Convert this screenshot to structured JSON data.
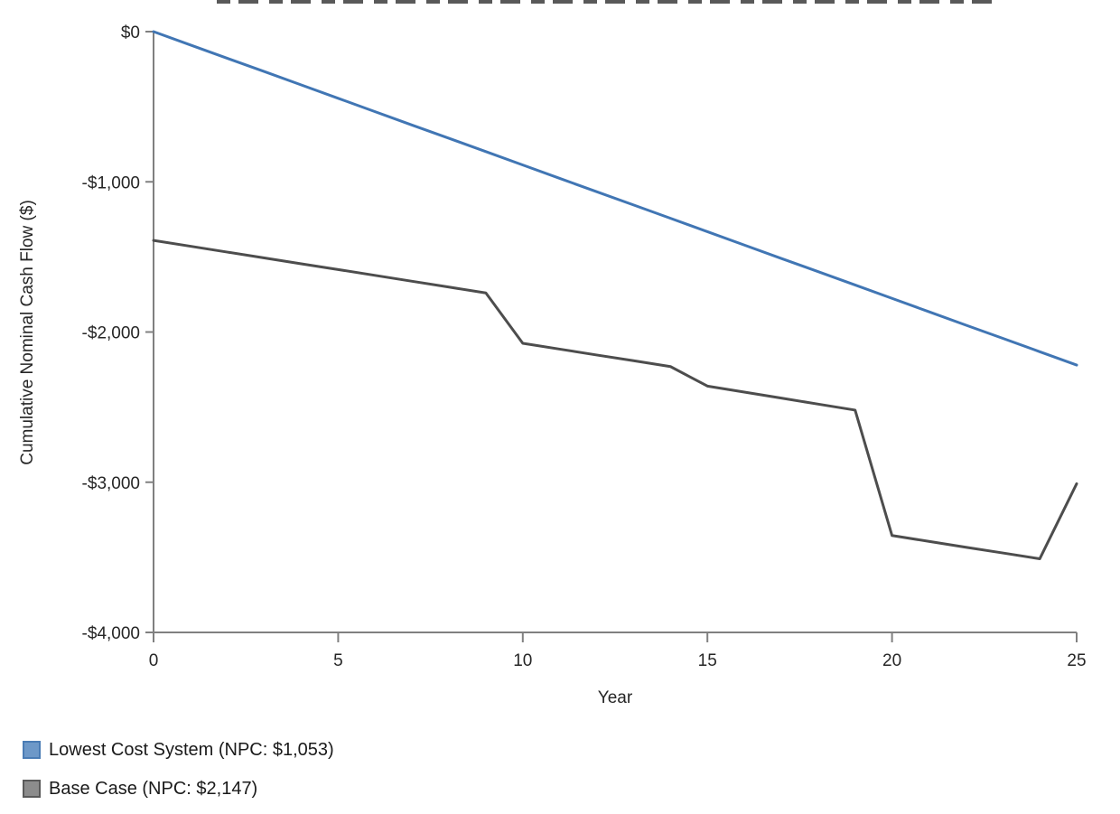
{
  "chart_data": {
    "type": "line",
    "xlabel": "Year",
    "ylabel": "Cumulative Nominal Cash Flow ($)",
    "xlim": [
      0,
      25
    ],
    "ylim": [
      -4000,
      0
    ],
    "grid": false,
    "legend_position": "bottom-left",
    "x_ticks": [
      0,
      5,
      10,
      15,
      20,
      25
    ],
    "y_ticks": [
      {
        "value": 0,
        "label": "$0"
      },
      {
        "value": -1000,
        "label": "-$1,000"
      },
      {
        "value": -2000,
        "label": "-$2,000"
      },
      {
        "value": -3000,
        "label": "-$3,000"
      },
      {
        "value": -4000,
        "label": "-$4,000"
      }
    ],
    "x": [
      0,
      1,
      2,
      3,
      4,
      5,
      6,
      7,
      8,
      9,
      10,
      11,
      12,
      13,
      14,
      15,
      16,
      17,
      18,
      19,
      20,
      21,
      22,
      23,
      24,
      25
    ],
    "series": [
      {
        "name": "Lowest Cost System (NPC: $1,053)",
        "color": "#4176b4",
        "values": [
          0,
          -89,
          -178,
          -266,
          -355,
          -444,
          -533,
          -622,
          -710,
          -799,
          -888,
          -977,
          -1066,
          -1154,
          -1243,
          -1332,
          -1421,
          -1510,
          -1598,
          -1687,
          -1776,
          -1865,
          -1954,
          -2042,
          -2131,
          -2220
        ]
      },
      {
        "name": "Base Case (NPC: $2,147)",
        "color": "#4d4d4d",
        "values": [
          -1390,
          -1429,
          -1468,
          -1507,
          -1546,
          -1584,
          -1623,
          -1662,
          -1701,
          -1740,
          -2075,
          -2114,
          -2153,
          -2191,
          -2230,
          -2360,
          -2400,
          -2440,
          -2480,
          -2520,
          -3355,
          -3394,
          -3433,
          -3471,
          -3510,
          -3010
        ]
      }
    ]
  },
  "legend": {
    "items": [
      {
        "label": "Lowest Cost System (NPC: $1,053)",
        "swatch_fill": "#6d98c8",
        "swatch_border": "#4a7cb5"
      },
      {
        "label": "Base Case (NPC: $2,147)",
        "swatch_fill": "#8c8c8c",
        "swatch_border": "#5a5a5a"
      }
    ]
  }
}
